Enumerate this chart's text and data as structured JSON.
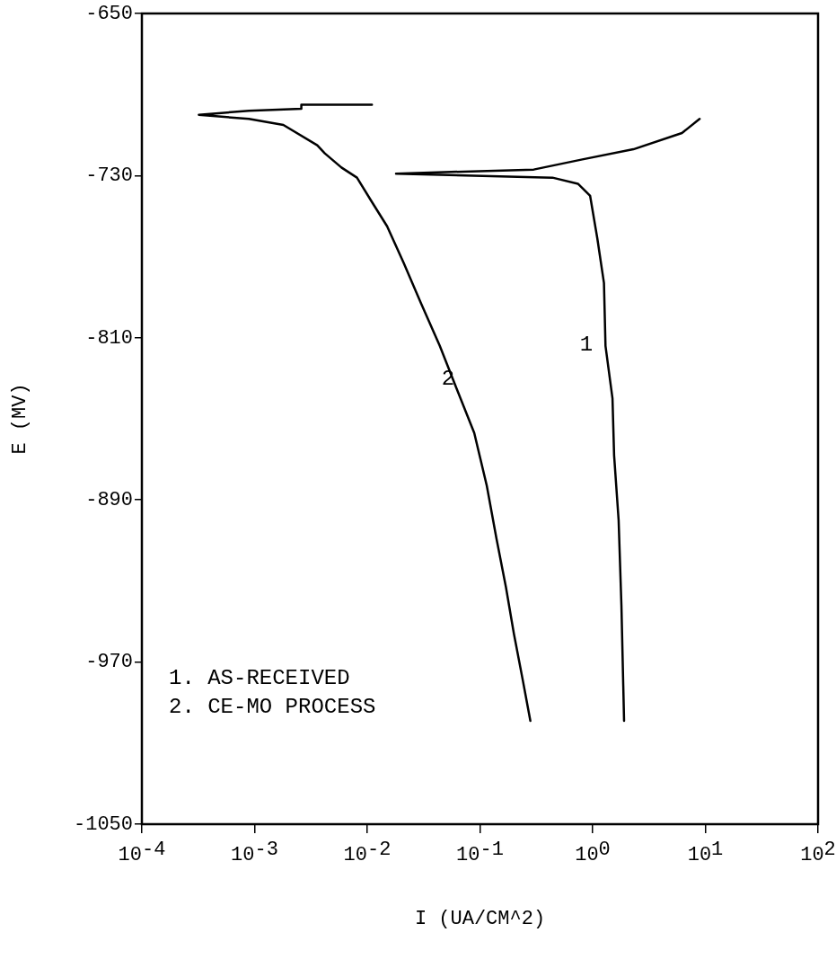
{
  "chart_data": {
    "type": "line",
    "xlabel": "I (UA/CM^2)",
    "ylabel": "E (MV)",
    "log": "x",
    "grid": false,
    "legend": false,
    "marker": "none",
    "line_style": "solid",
    "xlim": [
      0.0001,
      100
    ],
    "xticks": [
      {
        "value": 0.0001,
        "label": "10$^{-4}$"
      },
      {
        "value": 0.001,
        "label": "10$^{-3}$"
      },
      {
        "value": 0.01,
        "label": "10$^{-2}$"
      },
      {
        "value": 0.1,
        "label": "10$^{-1}$"
      },
      {
        "value": 1,
        "label": "10$^{0}$"
      },
      {
        "value": 10,
        "label": "10$^{1}$"
      },
      {
        "value": 100,
        "label": "10$^{2}$"
      }
    ],
    "ylim": [
      -1050,
      -650
    ],
    "yticks": [
      -1050,
      -970,
      -890,
      -810,
      -730,
      -650
    ],
    "series": [
      {
        "name": "1",
        "color": "#000000",
        "x": [
          1.9,
          1.8,
          1.7,
          1.55,
          1.5,
          1.3,
          1.26,
          1.1,
          0.95,
          0.74,
          0.44,
          0.018,
          0.3,
          0.81,
          2.3,
          6.2,
          8.9
        ],
        "values": [
          -999,
          -942,
          -900,
          -868,
          -840,
          -814,
          -783,
          -761,
          -740,
          -734,
          -731,
          -729,
          -727,
          -722,
          -717,
          -709,
          -702
        ]
      },
      {
        "name": "2",
        "color": "#000000",
        "x": [
          0.28,
          0.24,
          0.2,
          0.17,
          0.14,
          0.115,
          0.089,
          0.062,
          0.044,
          0.03,
          0.021,
          0.015,
          0.011,
          0.0081,
          0.0059,
          0.0042,
          0.0036,
          0.0018,
          0.00089,
          0.00032,
          0.00089,
          0.0026,
          0.0026,
          0.011
        ],
        "values": [
          -999,
          -979,
          -956,
          -933,
          -909,
          -883,
          -857,
          -835,
          -814,
          -793,
          -773,
          -755,
          -743,
          -731,
          -726,
          -719,
          -715,
          -705,
          -702,
          -700,
          -698,
          -697,
          -695,
          -695
        ]
      }
    ],
    "annotations": [
      "1. AS-RECEIVED",
      "2. CE-MO PROCESS"
    ]
  }
}
